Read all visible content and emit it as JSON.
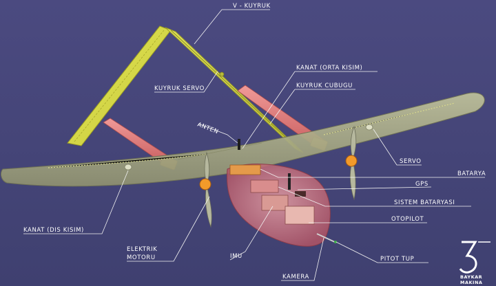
{
  "labels": {
    "v_tail": "V - KUYRUK",
    "tail_servo": "KUYRUK SERVO",
    "wing_center": "KANAT (ORTA KISIM)",
    "tail_boom": "KUYRUK CUBUGU",
    "antenna": "ANTEN",
    "servo": "SERVO",
    "battery": "BATARYA",
    "gps": "GPS",
    "system_battery": "SISTEM BATARYASI",
    "autopilot": "OTOPILOT",
    "pitot_tube": "PITOT TUP",
    "camera": "KAMERA",
    "imu": "IMU",
    "electric_motor_line1": "ELEKTRIK",
    "electric_motor_line2": "MOTORU",
    "wing_outer": "KANAT (DIS KISIM)"
  },
  "logo": {
    "line1": "BAYKAR",
    "line2": "MAKINA"
  },
  "colors": {
    "background": "#4a4a7c",
    "wing": "#a9ab86",
    "tail": "#d7d944",
    "boom": "#e07a78",
    "fuselage": "#c77b86",
    "propeller_hub": "#f39a2a",
    "label_text": "#ffffff"
  }
}
